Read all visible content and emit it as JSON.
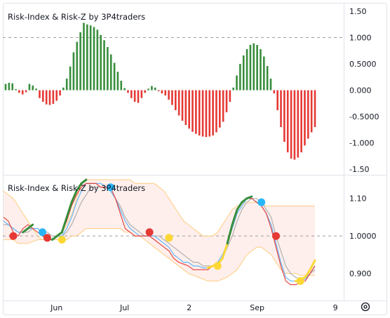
{
  "chart_data": [
    {
      "type": "bar",
      "title": "Risk-Index & Risk-Z by 3P4traders",
      "ylim": [
        -1.5,
        1.5
      ],
      "y_ticks": [
        "1.50",
        "1.000",
        "0.5000",
        "0.000",
        "-0.5000",
        "-1.000",
        "-1.50"
      ],
      "y_tick_values": [
        1.5,
        1.0,
        0.5,
        0.0,
        -0.5,
        -1.0,
        -1.5
      ],
      "values": [
        0.12,
        0.14,
        0.13,
        0.02,
        -0.05,
        -0.08,
        -0.04,
        0.12,
        0.09,
        0.03,
        -0.15,
        -0.22,
        -0.27,
        -0.28,
        -0.26,
        -0.2,
        -0.1,
        0.05,
        0.22,
        0.45,
        0.72,
        0.92,
        1.1,
        1.28,
        1.25,
        1.23,
        1.2,
        1.15,
        1.05,
        0.95,
        0.82,
        0.68,
        0.52,
        0.35,
        0.18,
        0.04,
        -0.05,
        -0.15,
        -0.22,
        -0.24,
        -0.15,
        -0.05,
        0.03,
        0.08,
        0.05,
        -0.02,
        -0.06,
        -0.1,
        -0.18,
        -0.28,
        -0.38,
        -0.48,
        -0.58,
        -0.66,
        -0.73,
        -0.79,
        -0.83,
        -0.86,
        -0.88,
        -0.89,
        -0.88,
        -0.86,
        -0.8,
        -0.71,
        -0.6,
        -0.42,
        -0.22,
        0.05,
        0.28,
        0.5,
        0.66,
        0.78,
        0.86,
        0.89,
        0.86,
        0.78,
        0.64,
        0.46,
        0.22,
        -0.06,
        -0.38,
        -0.7,
        -0.98,
        -1.18,
        -1.3,
        -1.32,
        -1.28,
        -1.18,
        -1.05,
        -0.92,
        -0.8,
        -0.7
      ],
      "positive_color": "#388e3c",
      "negative_color": "#e53935"
    },
    {
      "type": "line",
      "title": "Risk-Index & Risk-Z by 3P4traders",
      "ylim": [
        0.83,
        1.15
      ],
      "y_ticks": [
        "1.10",
        "1.0000",
        "0.900"
      ],
      "y_tick_values": [
        1.1,
        1.0,
        0.9
      ],
      "x_ticks": [
        "Jun",
        "Jul",
        "2",
        "Sep",
        "9"
      ],
      "x_tick_index": [
        15,
        35,
        54,
        74,
        97
      ],
      "series": [
        {
          "values": [
            1.05,
            1.04,
            1.01,
            1.0,
            1.02,
            1.03,
            1.02,
            1.01,
            1.0,
            0.99,
            0.99,
            1.0,
            1.01,
            1.04,
            1.08,
            1.11,
            1.13,
            1.14,
            1.14,
            1.14,
            1.13,
            1.13,
            1.13,
            1.1,
            1.06,
            1.02,
            1.01,
            1.0,
            1.0,
            1.0,
            1.0,
            0.99,
            0.98,
            0.97,
            0.96,
            0.94,
            0.93,
            0.925,
            0.92,
            0.91,
            0.91,
            0.91,
            0.91,
            0.92,
            0.92,
            0.94,
            0.98,
            1.03,
            1.07,
            1.09,
            1.1,
            1.1,
            1.09,
            1.08,
            1.06,
            1.02,
            0.97,
            0.92,
            0.88,
            0.87,
            0.87,
            0.875,
            0.88,
            0.9,
            0.92
          ],
          "color": "#e53935"
        },
        {
          "values": [
            1.04,
            1.03,
            1.02,
            1.01,
            1.01,
            1.02,
            1.02,
            1.02,
            1.01,
            1.0,
            0.99,
            1.0,
            1.0,
            1.02,
            1.05,
            1.09,
            1.12,
            1.14,
            1.14,
            1.14,
            1.14,
            1.13,
            1.12,
            1.1,
            1.07,
            1.04,
            1.02,
            1.01,
            1.0,
            1.0,
            1.0,
            1.0,
            0.99,
            0.98,
            0.97,
            0.95,
            0.94,
            0.93,
            0.93,
            0.92,
            0.92,
            0.915,
            0.915,
            0.92,
            0.93,
            0.95,
            0.98,
            1.02,
            1.06,
            1.08,
            1.1,
            1.1,
            1.09,
            1.08,
            1.06,
            1.03,
            0.98,
            0.93,
            0.89,
            0.88,
            0.88,
            0.88,
            0.885,
            0.9,
            0.92
          ],
          "color": "#64b5f6"
        },
        {
          "values": [
            1.03,
            1.03,
            1.02,
            1.01,
            1.01,
            1.01,
            1.02,
            1.02,
            1.01,
            1.01,
            1.0,
            1.0,
            1.0,
            1.01,
            1.03,
            1.06,
            1.09,
            1.11,
            1.13,
            1.13,
            1.13,
            1.13,
            1.12,
            1.1,
            1.08,
            1.05,
            1.03,
            1.02,
            1.01,
            1.0,
            1.0,
            1.0,
            1.0,
            0.99,
            0.98,
            0.97,
            0.96,
            0.95,
            0.94,
            0.93,
            0.93,
            0.92,
            0.92,
            0.92,
            0.93,
            0.94,
            0.97,
            1.0,
            1.04,
            1.07,
            1.09,
            1.1,
            1.1,
            1.09,
            1.07,
            1.05,
            1.0,
            0.96,
            0.92,
            0.9,
            0.89,
            0.885,
            0.89,
            0.9,
            0.91
          ],
          "color": "#b0b0b0"
        },
        {
          "values": [
            1.03,
            1.03,
            1.02,
            1.01,
            1.01,
            1.02,
            1.03,
            1.02,
            1.01,
            1.0,
            0.99,
            1.0,
            1.01,
            1.05,
            1.09,
            1.12,
            1.14,
            1.15,
            1.15,
            1.14,
            1.14,
            1.13,
            1.13,
            1.1,
            1.06,
            1.02,
            1.01,
            1.0,
            1.0,
            1.0,
            1.0,
            0.99,
            0.98,
            0.97,
            0.96,
            0.94,
            0.93,
            0.925,
            0.92,
            0.915,
            0.915,
            0.915,
            0.915,
            0.92,
            0.925,
            0.94,
            0.98,
            1.03,
            1.07,
            1.09,
            1.1,
            1.105,
            1.1,
            1.09,
            1.06,
            1.02,
            0.97,
            0.92,
            0.89,
            0.88,
            0.88,
            0.885,
            0.89,
            0.91,
            0.935
          ],
          "color_segments": [
            "#388e3c",
            "#fdd835"
          ]
        },
        {
          "values": [
            1.12,
            1.11,
            1.1,
            1.08,
            1.06,
            1.04,
            1.02,
            1.0,
            0.99,
            0.99,
            0.99,
            1.0,
            1.01,
            1.03,
            1.06,
            1.1,
            1.14,
            1.15,
            1.15,
            1.15,
            1.15,
            1.15,
            1.15,
            1.15,
            1.15,
            1.15,
            1.15,
            1.14,
            1.14,
            1.14,
            1.14,
            1.14,
            1.13,
            1.12,
            1.1,
            1.08,
            1.06,
            1.04,
            1.03,
            1.02,
            1.01,
            1.0,
            1.0,
            1.0,
            1.01,
            1.03,
            1.05,
            1.07,
            1.08,
            1.085,
            1.09,
            1.09,
            1.09,
            1.085,
            1.08,
            1.08,
            1.08,
            1.08,
            1.08,
            1.08,
            1.08,
            1.08,
            1.08,
            1.08,
            1.08
          ],
          "color": "#ffcc80"
        },
        {
          "values": [
            0.99,
            0.99,
            0.99,
            0.98,
            0.98,
            0.98,
            0.985,
            0.99,
            0.99,
            0.99,
            0.99,
            0.99,
            0.99,
            0.99,
            1.0,
            1.0,
            1.01,
            1.02,
            1.02,
            1.02,
            1.02,
            1.02,
            1.02,
            1.02,
            1.02,
            1.01,
            1.01,
            1.0,
            1.0,
            0.99,
            0.98,
            0.97,
            0.96,
            0.95,
            0.94,
            0.93,
            0.92,
            0.91,
            0.9,
            0.895,
            0.89,
            0.885,
            0.88,
            0.88,
            0.88,
            0.885,
            0.89,
            0.9,
            0.91,
            0.93,
            0.95,
            0.96,
            0.97,
            0.97,
            0.96,
            0.95,
            0.93,
            0.91,
            0.9,
            0.9,
            0.9,
            0.895,
            0.895,
            0.895,
            0.895
          ],
          "color": "#ffcc80"
        }
      ],
      "markers": [
        {
          "x": 2,
          "y": 1.0,
          "color": "#e53935"
        },
        {
          "x": 8,
          "y": 1.01,
          "color": "#29b6f6"
        },
        {
          "x": 9,
          "y": 0.995,
          "color": "#e53935"
        },
        {
          "x": 12,
          "y": 0.99,
          "color": "#fdd835"
        },
        {
          "x": 22,
          "y": 1.13,
          "color": "#29b6f6"
        },
        {
          "x": 30,
          "y": 1.01,
          "color": "#e53935"
        },
        {
          "x": 34,
          "y": 0.995,
          "color": "#fdd835"
        },
        {
          "x": 44,
          "y": 0.92,
          "color": "#fdd835"
        },
        {
          "x": 53,
          "y": 1.09,
          "color": "#29b6f6"
        },
        {
          "x": 56,
          "y": 1.0,
          "color": "#e53935"
        },
        {
          "x": 61,
          "y": 0.88,
          "color": "#fdd835"
        }
      ],
      "reference_line": 1.0
    }
  ]
}
